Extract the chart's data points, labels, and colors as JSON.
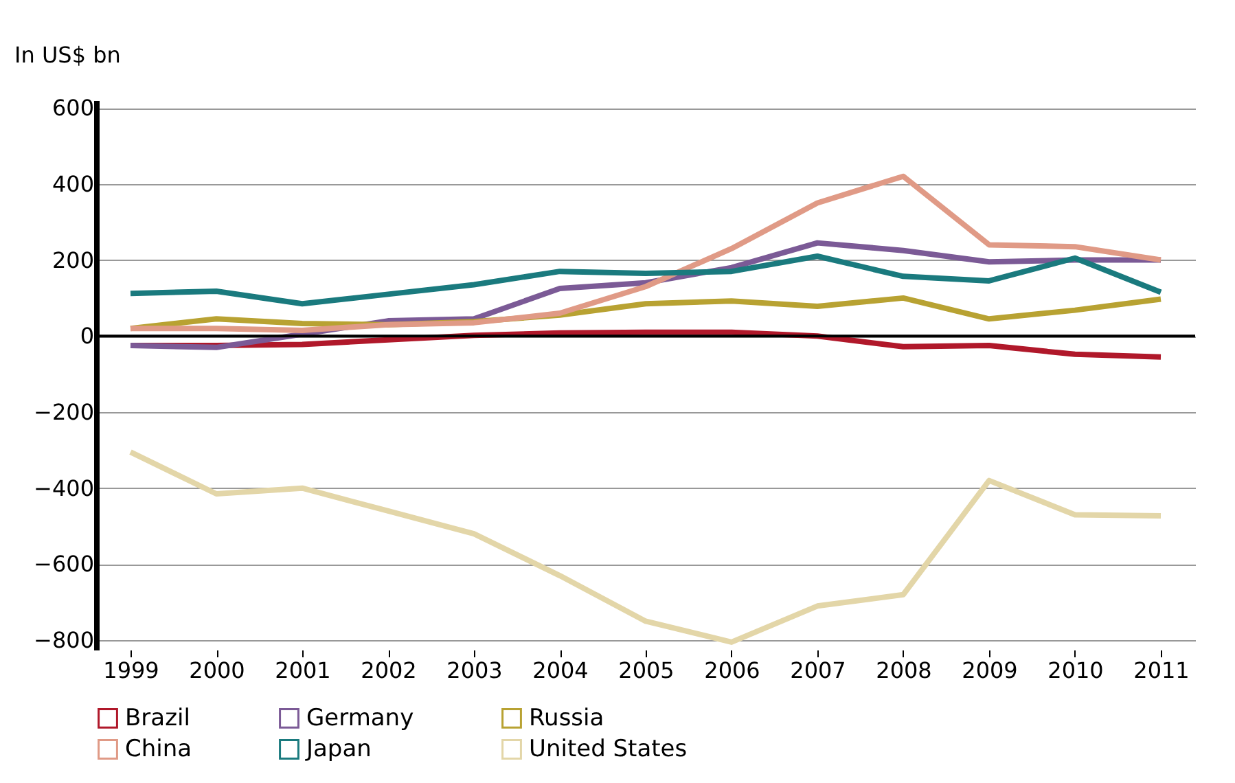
{
  "chart_data": {
    "type": "line",
    "ylabel": "In US$ bn",
    "x": [
      1999,
      2000,
      2001,
      2002,
      2003,
      2004,
      2005,
      2006,
      2007,
      2008,
      2009,
      2010,
      2011
    ],
    "series": [
      {
        "name": "Brazil",
        "color": "#b0182a",
        "values": [
          -25,
          -25,
          -22,
          -10,
          2,
          8,
          10,
          10,
          0,
          -28,
          -25,
          -48,
          -55
        ]
      },
      {
        "name": "Germany",
        "color": "#7b5a96",
        "values": [
          -25,
          -30,
          5,
          40,
          45,
          125,
          140,
          180,
          245,
          225,
          195,
          200,
          200
        ]
      },
      {
        "name": "Russia",
        "color": "#b8a232",
        "values": [
          20,
          45,
          33,
          30,
          38,
          55,
          85,
          92,
          78,
          100,
          45,
          68,
          97
        ]
      },
      {
        "name": "China",
        "color": "#e09a86",
        "values": [
          20,
          20,
          15,
          30,
          35,
          60,
          130,
          230,
          350,
          420,
          240,
          235,
          200
        ]
      },
      {
        "name": "Japan",
        "color": "#1a7a7e",
        "values": [
          112,
          118,
          85,
          110,
          135,
          170,
          165,
          170,
          210,
          157,
          145,
          205,
          115
        ]
      },
      {
        "name": "United States",
        "color": "#e3d6a8",
        "values": [
          -305,
          -415,
          -400,
          -460,
          -520,
          -630,
          -750,
          -805,
          -710,
          -680,
          -380,
          -470,
          -473
        ]
      }
    ],
    "xlim": [
      1998.6,
      2011.4
    ],
    "xticks": [
      1999,
      2000,
      2001,
      2002,
      2003,
      2004,
      2005,
      2006,
      2007,
      2008,
      2009,
      2010,
      2011
    ],
    "ylim": [
      -825,
      620
    ],
    "yticks": [
      -800,
      -600,
      -400,
      -200,
      0,
      200,
      400,
      600
    ],
    "ref_lines": [
      {
        "axis": "y",
        "value": 0,
        "color": "#000000"
      }
    ],
    "grid": "y",
    "legend": "bottom left",
    "marker": "none",
    "line_style": "solid"
  }
}
